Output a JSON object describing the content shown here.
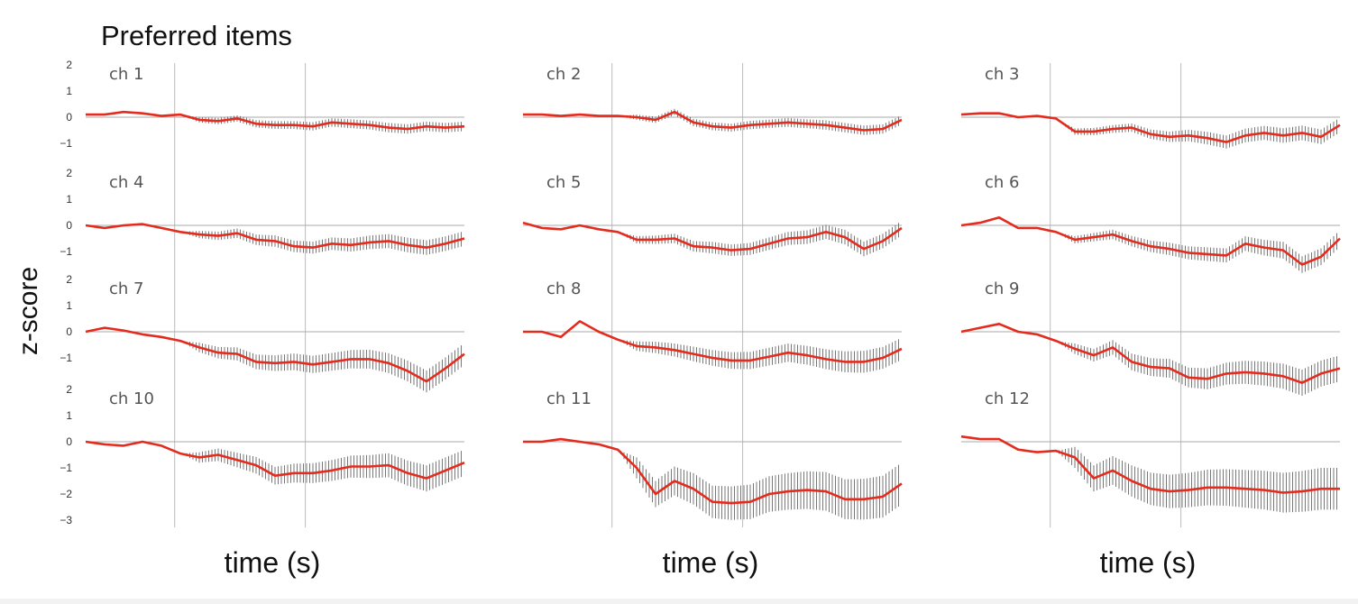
{
  "title": "Preferred items",
  "ylabel": "z-score",
  "xlabels": [
    "time (s)",
    "time (s)",
    "time (s)"
  ],
  "colors": {
    "line": "#e32b1e",
    "error": "#555555",
    "zero": "#aaaaaa",
    "marker": "#bbbbbb",
    "text": "#555555"
  },
  "chart_data": {
    "type": "line",
    "title": "Preferred items",
    "ylabel": "z-score",
    "xlabel": "time (s)",
    "y_ticks_by_row": [
      [
        2,
        1,
        0,
        -1
      ],
      [
        2,
        1,
        0,
        -1
      ],
      [
        2,
        1,
        0,
        -1
      ],
      [
        2,
        1,
        0,
        -1,
        -2,
        -3
      ]
    ],
    "x_range": [
      0,
      1
    ],
    "grid": false,
    "panels": [
      {
        "label": "ch 1",
        "row": 0,
        "col": 0,
        "x": [
          0,
          0.05,
          0.1,
          0.15,
          0.2,
          0.25,
          0.3,
          0.35,
          0.4,
          0.45,
          0.5,
          0.55,
          0.6,
          0.65,
          0.7,
          0.75,
          0.8,
          0.85,
          0.9,
          0.95,
          1
        ],
        "y": [
          0.1,
          0.1,
          0.2,
          0.15,
          0.05,
          0.1,
          -0.1,
          -0.15,
          -0.05,
          -0.25,
          -0.3,
          -0.3,
          -0.35,
          -0.2,
          -0.25,
          -0.3,
          -0.4,
          -0.45,
          -0.35,
          -0.4,
          -0.35
        ],
        "err": [
          0,
          0,
          0,
          0,
          0,
          0,
          0.1,
          0.12,
          0.12,
          0.14,
          0.15,
          0.15,
          0.16,
          0.16,
          0.17,
          0.17,
          0.18,
          0.18,
          0.18,
          0.18,
          0.18
        ]
      },
      {
        "label": "ch 2",
        "row": 0,
        "col": 1,
        "x": [
          0,
          0.05,
          0.1,
          0.15,
          0.2,
          0.25,
          0.3,
          0.35,
          0.4,
          0.45,
          0.5,
          0.55,
          0.6,
          0.65,
          0.7,
          0.75,
          0.8,
          0.85,
          0.9,
          0.95,
          1
        ],
        "y": [
          0.1,
          0.1,
          0.05,
          0.1,
          0.05,
          0.05,
          0,
          -0.1,
          0.2,
          -0.2,
          -0.35,
          -0.4,
          -0.3,
          -0.25,
          -0.2,
          -0.25,
          -0.3,
          -0.4,
          -0.5,
          -0.45,
          -0.1
        ],
        "err": [
          0,
          0,
          0,
          0,
          0,
          0,
          0.1,
          0.12,
          0.12,
          0.14,
          0.15,
          0.15,
          0.16,
          0.16,
          0.17,
          0.17,
          0.18,
          0.18,
          0.18,
          0.18,
          0.18
        ]
      },
      {
        "label": "ch 3",
        "row": 0,
        "col": 2,
        "x": [
          0,
          0.05,
          0.1,
          0.15,
          0.2,
          0.25,
          0.3,
          0.35,
          0.4,
          0.45,
          0.5,
          0.55,
          0.6,
          0.65,
          0.7,
          0.75,
          0.8,
          0.85,
          0.9,
          0.95,
          1
        ],
        "y": [
          0.1,
          0.15,
          0.15,
          0,
          0.05,
          -0.05,
          -0.55,
          -0.55,
          -0.45,
          -0.4,
          -0.65,
          -0.75,
          -0.7,
          -0.8,
          -0.95,
          -0.7,
          -0.6,
          -0.7,
          -0.6,
          -0.75,
          -0.3
        ],
        "err": [
          0,
          0,
          0,
          0,
          0,
          0,
          0.12,
          0.14,
          0.15,
          0.16,
          0.18,
          0.2,
          0.22,
          0.24,
          0.25,
          0.26,
          0.27,
          0.28,
          0.28,
          0.28,
          0.28
        ]
      },
      {
        "label": "ch 4",
        "row": 1,
        "col": 0,
        "x": [
          0,
          0.05,
          0.1,
          0.15,
          0.2,
          0.25,
          0.3,
          0.35,
          0.4,
          0.45,
          0.5,
          0.55,
          0.6,
          0.65,
          0.7,
          0.75,
          0.8,
          0.85,
          0.9,
          0.95,
          1
        ],
        "y": [
          0,
          -0.1,
          0,
          0.05,
          -0.1,
          -0.25,
          -0.35,
          -0.4,
          -0.3,
          -0.55,
          -0.6,
          -0.8,
          -0.85,
          -0.7,
          -0.75,
          -0.65,
          -0.6,
          -0.75,
          -0.85,
          -0.7,
          -0.5
        ],
        "err": [
          0,
          0,
          0,
          0,
          0,
          0,
          0.14,
          0.16,
          0.18,
          0.2,
          0.22,
          0.22,
          0.23,
          0.24,
          0.25,
          0.26,
          0.27,
          0.28,
          0.28,
          0.28,
          0.28
        ]
      },
      {
        "label": "ch 5",
        "row": 1,
        "col": 1,
        "x": [
          0,
          0.05,
          0.1,
          0.15,
          0.2,
          0.25,
          0.3,
          0.35,
          0.4,
          0.45,
          0.5,
          0.55,
          0.6,
          0.65,
          0.7,
          0.75,
          0.8,
          0.85,
          0.9,
          0.95,
          1
        ],
        "y": [
          0.1,
          -0.1,
          -0.15,
          0,
          -0.15,
          -0.25,
          -0.55,
          -0.55,
          -0.5,
          -0.8,
          -0.85,
          -0.95,
          -0.9,
          -0.7,
          -0.5,
          -0.45,
          -0.25,
          -0.45,
          -0.9,
          -0.6,
          -0.1
        ],
        "err": [
          0,
          0,
          0,
          0,
          0,
          0,
          0.14,
          0.16,
          0.18,
          0.2,
          0.22,
          0.22,
          0.23,
          0.24,
          0.25,
          0.26,
          0.27,
          0.28,
          0.28,
          0.28,
          0.28
        ]
      },
      {
        "label": "ch 6",
        "row": 1,
        "col": 2,
        "x": [
          0,
          0.05,
          0.1,
          0.15,
          0.2,
          0.25,
          0.3,
          0.35,
          0.4,
          0.45,
          0.5,
          0.55,
          0.6,
          0.65,
          0.7,
          0.75,
          0.8,
          0.85,
          0.9,
          0.95,
          1
        ],
        "y": [
          0,
          0.1,
          0.3,
          -0.1,
          -0.1,
          -0.25,
          -0.55,
          -0.45,
          -0.35,
          -0.6,
          -0.8,
          -0.9,
          -1.05,
          -1.1,
          -1.15,
          -0.7,
          -0.85,
          -0.95,
          -1.5,
          -1.2,
          -0.5
        ],
        "err": [
          0,
          0,
          0,
          0,
          0,
          0,
          0.14,
          0.16,
          0.18,
          0.2,
          0.22,
          0.24,
          0.25,
          0.26,
          0.27,
          0.28,
          0.3,
          0.32,
          0.32,
          0.32,
          0.32
        ]
      },
      {
        "label": "ch 7",
        "row": 2,
        "col": 0,
        "x": [
          0,
          0.05,
          0.1,
          0.15,
          0.2,
          0.25,
          0.3,
          0.35,
          0.4,
          0.45,
          0.5,
          0.55,
          0.6,
          0.65,
          0.7,
          0.75,
          0.8,
          0.85,
          0.9,
          0.95,
          1
        ],
        "y": [
          0,
          0.15,
          0.05,
          -0.1,
          -0.2,
          -0.35,
          -0.6,
          -0.8,
          -0.85,
          -1.15,
          -1.2,
          -1.15,
          -1.25,
          -1.15,
          -1.05,
          -1.05,
          -1.2,
          -1.5,
          -1.9,
          -1.4,
          -0.85
        ],
        "err": [
          0,
          0,
          0,
          0,
          0,
          0,
          0.18,
          0.22,
          0.25,
          0.28,
          0.3,
          0.32,
          0.33,
          0.34,
          0.35,
          0.36,
          0.38,
          0.4,
          0.42,
          0.42,
          0.42
        ]
      },
      {
        "label": "ch 8",
        "row": 2,
        "col": 1,
        "x": [
          0,
          0.05,
          0.1,
          0.15,
          0.2,
          0.25,
          0.3,
          0.35,
          0.4,
          0.45,
          0.5,
          0.55,
          0.6,
          0.65,
          0.7,
          0.75,
          0.8,
          0.85,
          0.9,
          0.95,
          1
        ],
        "y": [
          0,
          0,
          -0.2,
          0.4,
          0,
          -0.3,
          -0.55,
          -0.6,
          -0.7,
          -0.85,
          -1.0,
          -1.1,
          -1.1,
          -0.95,
          -0.8,
          -0.9,
          -1.05,
          -1.15,
          -1.15,
          -1.0,
          -0.65
        ],
        "err": [
          0,
          0,
          0,
          0,
          0,
          0,
          0.18,
          0.22,
          0.25,
          0.28,
          0.3,
          0.32,
          0.33,
          0.34,
          0.35,
          0.36,
          0.38,
          0.4,
          0.42,
          0.42,
          0.42
        ]
      },
      {
        "label": "ch 9",
        "row": 2,
        "col": 2,
        "x": [
          0,
          0.05,
          0.1,
          0.15,
          0.2,
          0.25,
          0.3,
          0.35,
          0.4,
          0.45,
          0.5,
          0.55,
          0.6,
          0.65,
          0.7,
          0.75,
          0.8,
          0.85,
          0.9,
          0.95,
          1
        ],
        "y": [
          0,
          0.15,
          0.3,
          0,
          -0.1,
          -0.35,
          -0.65,
          -0.9,
          -0.6,
          -1.15,
          -1.35,
          -1.4,
          -1.75,
          -1.8,
          -1.6,
          -1.55,
          -1.6,
          -1.7,
          -1.95,
          -1.6,
          -1.4
        ],
        "err": [
          0,
          0,
          0,
          0,
          0,
          0,
          0.2,
          0.24,
          0.28,
          0.32,
          0.34,
          0.36,
          0.38,
          0.4,
          0.42,
          0.44,
          0.46,
          0.48,
          0.5,
          0.5,
          0.5
        ]
      },
      {
        "label": "ch 10",
        "row": 3,
        "col": 0,
        "x": [
          0,
          0.05,
          0.1,
          0.15,
          0.2,
          0.25,
          0.3,
          0.35,
          0.4,
          0.45,
          0.5,
          0.55,
          0.6,
          0.65,
          0.7,
          0.75,
          0.8,
          0.85,
          0.9,
          0.95,
          1
        ],
        "y": [
          0,
          -0.1,
          -0.15,
          0,
          -0.15,
          -0.45,
          -0.6,
          -0.5,
          -0.7,
          -0.9,
          -1.3,
          -1.2,
          -1.2,
          -1.1,
          -0.95,
          -0.95,
          -0.9,
          -1.2,
          -1.4,
          -1.1,
          -0.8
        ],
        "err": [
          0,
          0,
          0,
          0,
          0,
          0,
          0.2,
          0.24,
          0.28,
          0.32,
          0.34,
          0.36,
          0.38,
          0.4,
          0.42,
          0.44,
          0.46,
          0.48,
          0.5,
          0.5,
          0.5
        ]
      },
      {
        "label": "ch 11",
        "row": 3,
        "col": 1,
        "x": [
          0,
          0.05,
          0.1,
          0.15,
          0.2,
          0.25,
          0.3,
          0.35,
          0.4,
          0.45,
          0.5,
          0.55,
          0.6,
          0.65,
          0.7,
          0.75,
          0.8,
          0.85,
          0.9,
          0.95,
          1
        ],
        "y": [
          0,
          0,
          0.1,
          0,
          -0.1,
          -0.3,
          -1.0,
          -2.0,
          -1.5,
          -1.8,
          -2.3,
          -2.35,
          -2.3,
          -2.0,
          -1.9,
          -1.85,
          -1.9,
          -2.2,
          -2.2,
          -2.1,
          -1.6
        ],
        "err": [
          0,
          0,
          0,
          0,
          0,
          0,
          0.4,
          0.5,
          0.55,
          0.6,
          0.62,
          0.64,
          0.66,
          0.68,
          0.7,
          0.72,
          0.74,
          0.76,
          0.78,
          0.8,
          0.8
        ]
      },
      {
        "label": "ch 12",
        "row": 3,
        "col": 2,
        "x": [
          0,
          0.05,
          0.1,
          0.15,
          0.2,
          0.25,
          0.3,
          0.35,
          0.4,
          0.45,
          0.5,
          0.55,
          0.6,
          0.65,
          0.7,
          0.75,
          0.8,
          0.85,
          0.9,
          0.95,
          1
        ],
        "y": [
          0.2,
          0.1,
          0.1,
          -0.3,
          -0.4,
          -0.35,
          -0.6,
          -1.4,
          -1.1,
          -1.5,
          -1.8,
          -1.9,
          -1.85,
          -1.75,
          -1.75,
          -1.8,
          -1.85,
          -1.95,
          -1.9,
          -1.8,
          -1.8
        ],
        "err": [
          0,
          0,
          0,
          0,
          0,
          0,
          0.4,
          0.5,
          0.55,
          0.6,
          0.62,
          0.64,
          0.66,
          0.68,
          0.7,
          0.72,
          0.74,
          0.76,
          0.78,
          0.8,
          0.8
        ]
      }
    ]
  }
}
